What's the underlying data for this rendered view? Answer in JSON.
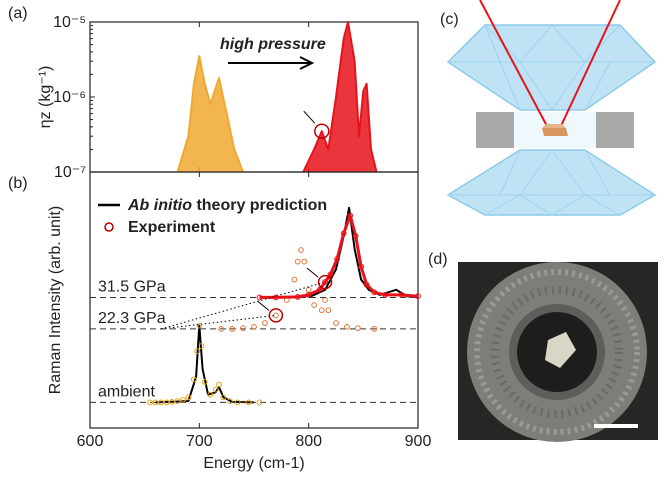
{
  "figure": {
    "panel_labels": [
      "(c)",
      "(d)"
    ]
  },
  "chart_data": [
    {
      "type": "line",
      "panel_label": "(a)",
      "ylabel": "ηz (kg⁻¹)",
      "log_y": true,
      "fill": true,
      "xlim": [
        600,
        900
      ],
      "xticks": [
        600,
        700,
        800,
        900
      ],
      "ylim": [
        1e-07,
        1e-05
      ],
      "yticks": [
        {
          "value": 1e-07,
          "label": "10⁻⁷"
        },
        {
          "value": 1e-06,
          "label": "10⁻⁶"
        },
        {
          "value": 1e-05,
          "label": "10⁻⁵"
        }
      ],
      "annotation": "high pressure",
      "series": [
        {
          "color": "#f0a830",
          "x": [
            680,
            690,
            695,
            700,
            705,
            710,
            718,
            725,
            732,
            740
          ],
          "values": [
            1e-07,
            3e-07,
            1.5e-06,
            3.5e-06,
            1.5e-06,
            8e-07,
            1.8e-06,
            6e-07,
            2e-07,
            1e-07
          ]
        },
        {
          "color": "#e8121b",
          "x": [
            795,
            805,
            812,
            818,
            825,
            832,
            836,
            842,
            846,
            850,
            853,
            857,
            862
          ],
          "values": [
            1e-07,
            2e-07,
            3.5e-07,
            2e-07,
            1e-06,
            6e-06,
            1e-05,
            3e-06,
            3e-07,
            1.2e-06,
            1.5e-06,
            2e-07,
            1e-07
          ]
        }
      ]
    },
    {
      "type": "line",
      "panel_label": "(b)",
      "xlabel": "Energy (cm-1)",
      "ylabel": "Raman Intensity (arb. unit)",
      "xlim": [
        600,
        900
      ],
      "xticks": [
        600,
        700,
        800,
        900
      ],
      "ylim": [
        0,
        10
      ],
      "legend": [
        {
          "text": "Ab initio theory prediction",
          "style": "line"
        },
        {
          "text": "Experiment",
          "style": "circle"
        }
      ],
      "series": [
        {
          "style": "line",
          "color": "#000000",
          "x": [
            660,
            690,
            697,
            700,
            703,
            708,
            715,
            718,
            722,
            730,
            750,
            null,
            800,
            815,
            825,
            832,
            837,
            842,
            848,
            855,
            865,
            880,
            890,
            900
          ],
          "values": [
            1,
            1.05,
            2,
            4.0,
            2.3,
            1.3,
            1.4,
            1.6,
            1.2,
            1.02,
            1.0,
            null,
            5.1,
            5.4,
            6.2,
            7.5,
            8.6,
            7.0,
            5.8,
            5.4,
            5.2,
            5.4,
            5.15,
            5.1
          ]
        },
        {
          "style": "markers",
          "label": "ambient",
          "baseline": 1.0,
          "color": "#e8a317",
          "x": [
            655,
            660,
            665,
            670,
            675,
            680,
            685,
            690,
            695,
            698,
            700,
            702,
            705,
            710,
            715,
            718,
            722,
            728,
            735,
            745,
            755
          ],
          "values": [
            1,
            1,
            1,
            1,
            1.02,
            1.05,
            1.1,
            1.2,
            1.9,
            3,
            4.0,
            3.2,
            1.8,
            1.3,
            1.5,
            1.7,
            1.2,
            1.05,
            1,
            1,
            1
          ]
        },
        {
          "style": "markers",
          "label": "22.3 GPa",
          "baseline": 3.87,
          "color": "#e8733a",
          "x": [
            720,
            730,
            740,
            750,
            760,
            770,
            780,
            787,
            790,
            793,
            796,
            800,
            805,
            812,
            815,
            818,
            825,
            835,
            845,
            860
          ],
          "values": [
            3.87,
            3.87,
            3.9,
            3.95,
            4.1,
            4.4,
            5.0,
            5.8,
            6.5,
            6.95,
            6.5,
            5.4,
            4.8,
            4.6,
            5.0,
            4.6,
            4.1,
            3.95,
            3.9,
            3.87
          ]
        },
        {
          "style": "markers-line",
          "label": "31.5 GPa",
          "baseline": 5.1,
          "color": "#e8121b",
          "x": [
            755,
            770,
            790,
            800,
            810,
            815,
            820,
            826,
            832,
            838,
            843,
            848,
            853,
            860,
            870,
            885,
            900
          ],
          "values": [
            5.1,
            5.1,
            5.12,
            5.2,
            5.4,
            5.7,
            6.0,
            6.6,
            7.6,
            8.3,
            7.5,
            6.3,
            5.6,
            5.3,
            5.2,
            5.2,
            5.15
          ]
        }
      ]
    }
  ]
}
